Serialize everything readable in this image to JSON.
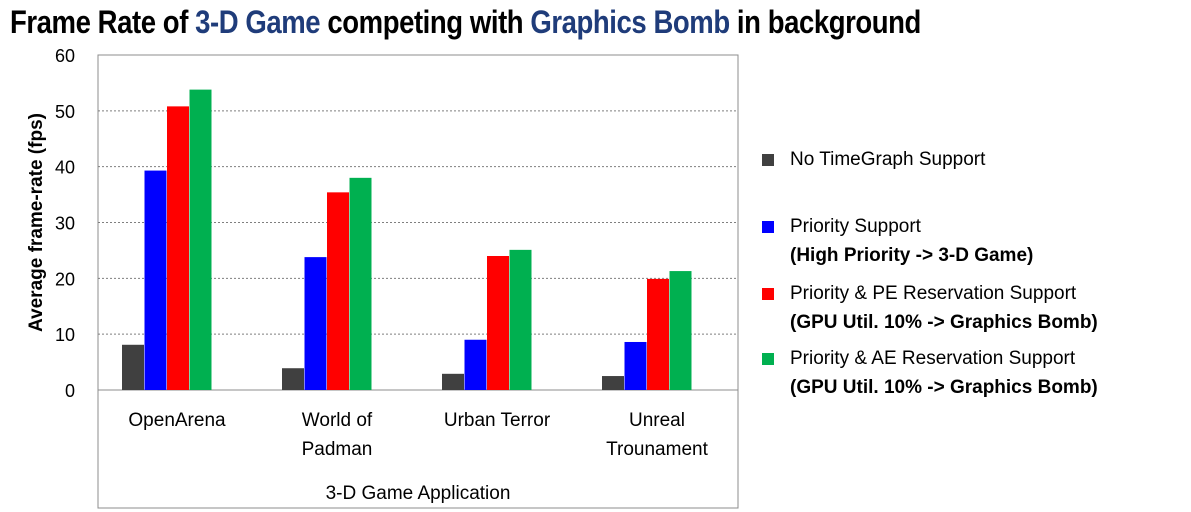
{
  "title": {
    "part1": "Frame Rate of ",
    "part2": "3-D Game",
    "part3": " competing with ",
    "part4": "Graphics Bomb",
    "part5": " in background"
  },
  "chart_data": {
    "type": "bar",
    "categories": [
      [
        "OpenArena"
      ],
      [
        "World of",
        "Padman"
      ],
      [
        "Urban Terror"
      ],
      [
        "Unreal",
        "Trounament"
      ]
    ],
    "series": [
      {
        "name": "No TimeGraph Support",
        "color": "#404040",
        "values": [
          8.1,
          3.9,
          2.9,
          2.5
        ]
      },
      {
        "name": "Priority Support",
        "color": "#0000ff",
        "values": [
          39.3,
          23.8,
          9.0,
          8.6
        ]
      },
      {
        "name": "Priority & PE Reservation Support",
        "color": "#ff0000",
        "values": [
          50.8,
          35.4,
          24.0,
          19.9
        ]
      },
      {
        "name": "Priority & AE Reservation Support",
        "color": "#00b050",
        "values": [
          53.8,
          38.0,
          25.1,
          21.3
        ]
      }
    ],
    "xlabel": "3-D Game Application",
    "ylabel": "Average frame-rate (fps)",
    "ylim": [
      0,
      60
    ],
    "yticks": [
      0,
      10,
      20,
      30,
      40,
      50,
      60
    ],
    "grid": true,
    "legend_position": "right"
  },
  "legend": [
    {
      "name": "No TimeGraph Support",
      "line2": "",
      "color": "#404040"
    },
    {
      "name": "Priority Support",
      "line2": "(High Priority -> 3-D Game)",
      "color": "#0000ff"
    },
    {
      "name": "Priority & PE Reservation Support",
      "line2": "(GPU Util. 10% -> Graphics Bomb)",
      "color": "#ff0000"
    },
    {
      "name": "Priority & AE Reservation Support",
      "line2": "(GPU Util. 10% -> Graphics Bomb)",
      "color": "#00b050"
    }
  ]
}
